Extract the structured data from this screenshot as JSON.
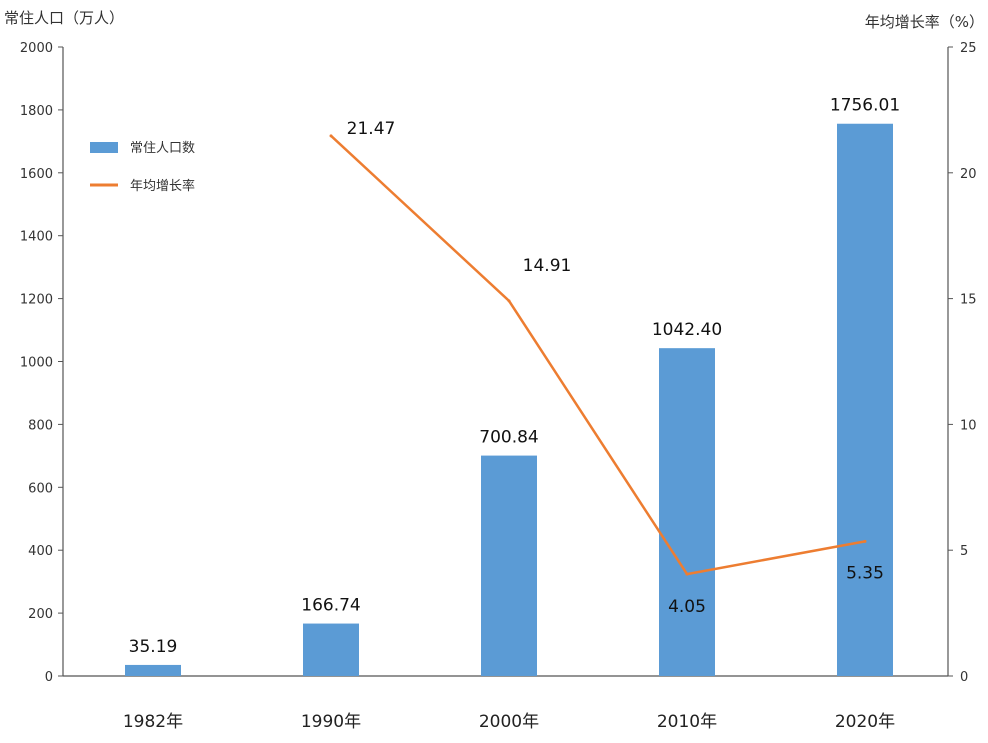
{
  "chart_data": {
    "type": "bar",
    "categories": [
      "1982年",
      "1990年",
      "2000年",
      "2010年",
      "2020年"
    ],
    "series": [
      {
        "name": "常住人口数",
        "type": "bar",
        "axis": "left",
        "color": "#5b9bd5",
        "values": [
          35.19,
          166.74,
          700.84,
          1042.4,
          1756.01
        ]
      },
      {
        "name": "年均增长率",
        "type": "line",
        "axis": "right",
        "color": "#ed7d31",
        "values": [
          null,
          21.47,
          14.91,
          4.05,
          5.35
        ]
      }
    ],
    "bar_labels": [
      "35.19",
      "166.74",
      "700.84",
      "1042.40",
      "1756.01"
    ],
    "line_labels": [
      "",
      "21.47",
      "14.91",
      "4.05",
      "5.35"
    ],
    "ylabel": "常住人口（万人）",
    "y2label": "年均增长率（%）",
    "ylim": [
      0,
      2000
    ],
    "y2lim": [
      0,
      25
    ],
    "yticks": [
      0,
      200,
      400,
      600,
      800,
      1000,
      1200,
      1400,
      1600,
      1800,
      2000
    ],
    "y2ticks": [
      0,
      5,
      10,
      15,
      20,
      25
    ],
    "legend_position": "top-left",
    "grid": false
  }
}
